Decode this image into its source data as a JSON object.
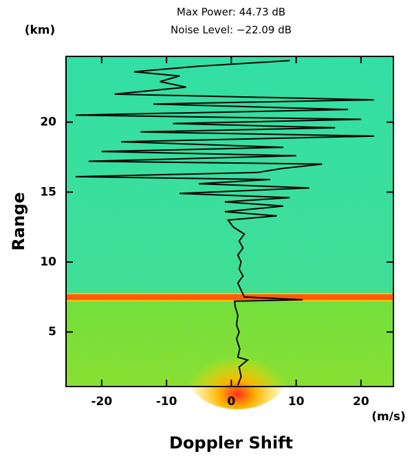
{
  "chart_data": {
    "type": "line",
    "title": "Max Power: 44.73 dB",
    "subtitle": "Noise Level: −22.09 dB",
    "x_label": "Doppler Shift",
    "x_unit": "(m/s)",
    "y_label": "Range",
    "y_unit": "(km)",
    "xlim": [
      -25.5,
      25
    ],
    "xticks": [
      -20,
      -10,
      0,
      10,
      20
    ],
    "ylim": [
      1.1,
      24.7
    ],
    "yticks": [
      5,
      10,
      15,
      20
    ],
    "series": [
      {
        "color": "#000000",
        "x": [
          1.0,
          1.5,
          1.2,
          2.5,
          1.0,
          1.3,
          0.8,
          1.2,
          0.8,
          1.0,
          0.6,
          0.5,
          11,
          2,
          1.5,
          1.0,
          1.8,
          1.2,
          1.5,
          1.0,
          1.8,
          1.2,
          2.0,
          0.3,
          -0.5,
          7,
          -1,
          8,
          -1,
          9,
          -8,
          2,
          12,
          -5,
          6,
          -24,
          4,
          8,
          14,
          -22,
          10,
          -20,
          8,
          -17,
          22,
          -14,
          16,
          -9,
          20,
          -24,
          18,
          -12,
          22,
          -18,
          -7,
          -11,
          -8,
          -15,
          -5,
          9
        ],
        "values": [
          1.2,
          1.8,
          2.5,
          3.0,
          3.2,
          3.8,
          4.5,
          5.0,
          5.5,
          6.2,
          6.8,
          7.2,
          7.3,
          7.5,
          8.0,
          8.5,
          9.0,
          9.5,
          10.0,
          10.5,
          11.0,
          11.5,
          12.0,
          12.5,
          13.0,
          13.3,
          13.6,
          14.0,
          14.3,
          14.6,
          14.9,
          15.1,
          15.3,
          15.6,
          15.9,
          16.1,
          16.4,
          16.7,
          17.0,
          17.2,
          17.6,
          17.9,
          18.2,
          18.6,
          19.0,
          19.3,
          19.6,
          19.9,
          20.2,
          20.5,
          20.9,
          21.3,
          21.6,
          22.0,
          22.5,
          22.9,
          23.3,
          23.6,
          24.0,
          24.4
        ]
      }
    ]
  }
}
